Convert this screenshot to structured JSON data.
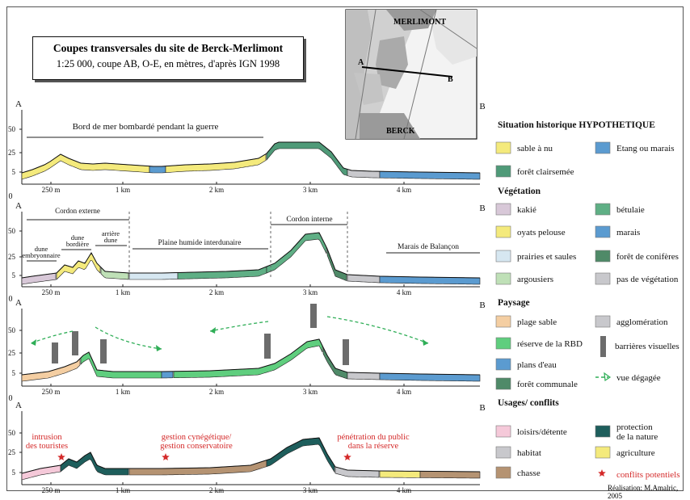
{
  "title": {
    "main": "Coupes transversales du site de Berck-Merlimont",
    "sub": "1:25 000, coupe AB, O-E, en mètres, d'après IGN 1998"
  },
  "map": {
    "labels": {
      "top": "MERLIMONT",
      "bottom": "BERCK",
      "a": "A",
      "b": "B"
    }
  },
  "axis": {
    "y_ticks": [
      "50",
      "25",
      "5"
    ],
    "zero": "0",
    "x_ticks": [
      "250 m",
      "1 km",
      "2 km",
      "3 km",
      "4 km"
    ],
    "end_a": "A",
    "end_b": "B"
  },
  "panels": [
    {
      "id": "situation",
      "annotations": [
        {
          "text": "Bord de mer bombardé pendant la guerre"
        }
      ]
    },
    {
      "id": "vegetation",
      "annotations": [
        {
          "text": "Cordon externe"
        },
        {
          "text": "dune embryonnaire"
        },
        {
          "text": "dune bordière"
        },
        {
          "text": "arrière dune"
        },
        {
          "text": "Plaine humide interdunaire"
        },
        {
          "text": "Cordon interne"
        },
        {
          "text": "Marais de Balançon"
        }
      ]
    },
    {
      "id": "paysage",
      "annotations": []
    },
    {
      "id": "usages",
      "annotations": [
        {
          "text": "intrusion des touristes"
        },
        {
          "text": "gestion cynégétique/ gestion conservatoire"
        },
        {
          "text": "pénétration du public dans la réserve"
        }
      ]
    }
  ],
  "legend": {
    "sections": [
      {
        "title": "Situation historique HYPOTHETIQUE",
        "items": [
          {
            "label": "sable à nu",
            "color": "#f4ea7c"
          },
          {
            "label": "Etang ou marais",
            "color": "#5b9bd0"
          },
          {
            "label": "forêt clairsemée",
            "color": "#4f9a78"
          }
        ]
      },
      {
        "title": "Végétation",
        "items": [
          {
            "label": "kakié",
            "color": "#d8c8d8"
          },
          {
            "label": "bétulaie",
            "color": "#5faf85"
          },
          {
            "label": "oyats pelouse",
            "color": "#f4ea7c"
          },
          {
            "label": "marais",
            "color": "#5b9bd0"
          },
          {
            "label": "prairies et saules",
            "color": "#d6e7f1"
          },
          {
            "label": "forêt de conifères",
            "color": "#4f8a68"
          },
          {
            "label": "argousiers",
            "color": "#bfe0b7"
          },
          {
            "label": "pas de végétation",
            "color": "#c8c8cc"
          }
        ]
      },
      {
        "title": "Paysage",
        "items": [
          {
            "label": "plage sable",
            "color": "#f4cea2"
          },
          {
            "label": "agglomération",
            "color": "#c8c8cc"
          },
          {
            "label": "réserve de la RBD",
            "color": "#5fce7e"
          },
          {
            "label": "barrières visuelles",
            "color": "#6c6c6c"
          },
          {
            "label": "plans d'eau",
            "color": "#5b9bd0"
          },
          {
            "label": "forêt communale",
            "color": "#4f8a68"
          },
          {
            "label": "vue dégagée",
            "color": "#2fae57"
          }
        ]
      },
      {
        "title": "Usages/ conflits",
        "items": [
          {
            "label": "loisirs/détente",
            "color": "#f5c9d9"
          },
          {
            "label": "protection de la nature",
            "color": "#1e5e5c"
          },
          {
            "label": "habitat",
            "color": "#c8c8cc"
          },
          {
            "label": "agriculture",
            "color": "#f4ea7c"
          },
          {
            "label": "chasse",
            "color": "#b59372"
          },
          {
            "label": "conflits potentiels",
            "color": "#d42a2a"
          }
        ]
      }
    ]
  },
  "credit": "Réalisation: M.Amalric, 2005"
}
